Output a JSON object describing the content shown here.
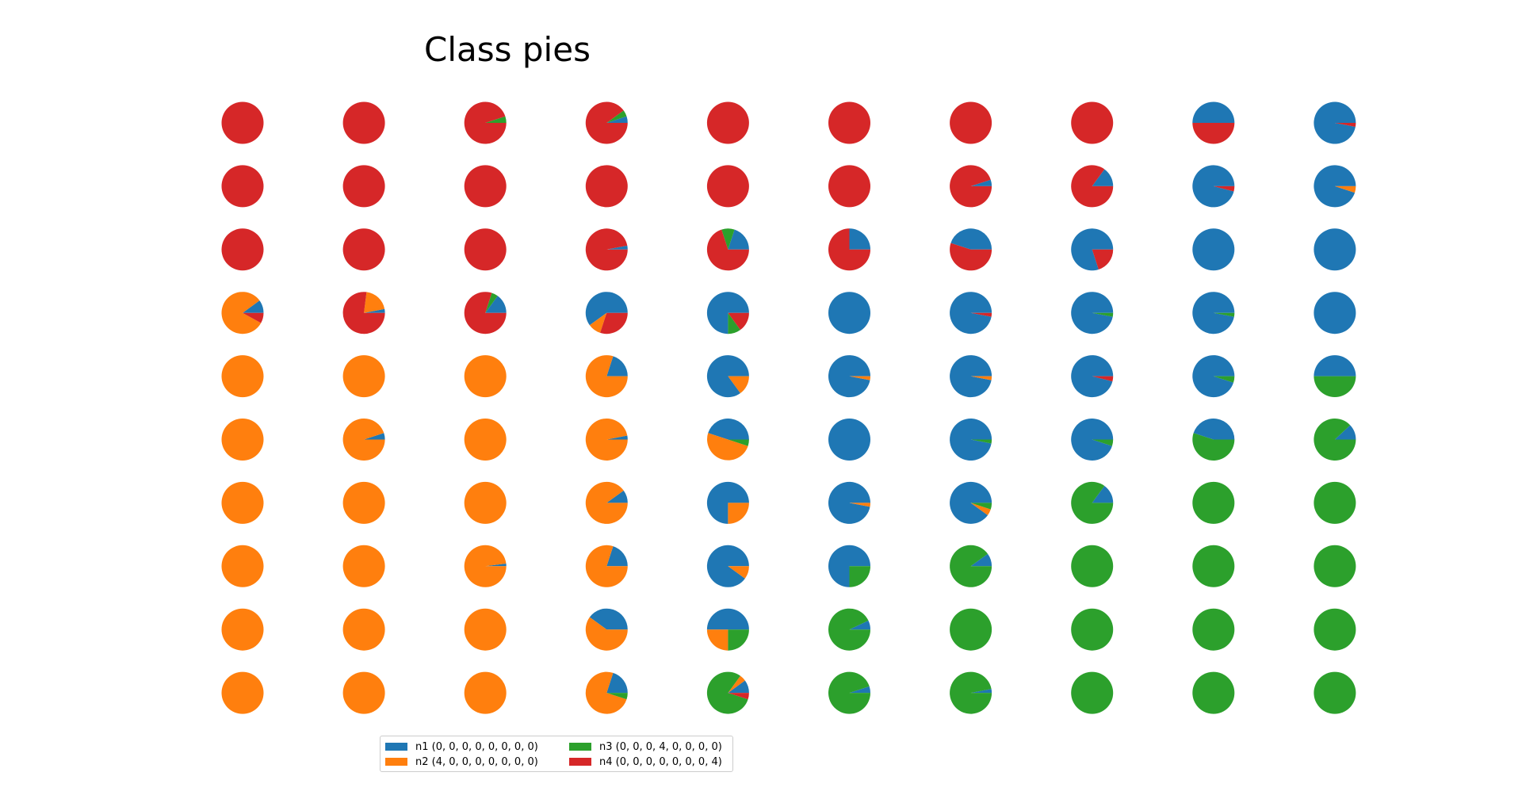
{
  "chart_data": {
    "type": "pie",
    "title": "Class pies",
    "grid_rows": 10,
    "grid_cols": 10,
    "class_order": [
      "n1",
      "n2",
      "n3",
      "n4"
    ],
    "colors": {
      "n1": "#1f77b4",
      "n2": "#ff7f0e",
      "n3": "#2ca02c",
      "n4": "#d62728"
    },
    "legend": {
      "placement": "bottom-left",
      "entries": [
        {
          "key": "n1",
          "label": "n1 (0, 0, 0, 0, 0, 0, 0, 0)",
          "color": "#1f77b4"
        },
        {
          "key": "n2",
          "label": "n2 (4, 0, 0, 0, 0, 0, 0, 0)",
          "color": "#ff7f0e"
        },
        {
          "key": "n3",
          "label": "n3 (0, 0, 0, 4, 0, 0, 0, 0)",
          "color": "#2ca02c"
        },
        {
          "key": "n4",
          "label": "n4 (0, 0, 0, 0, 0, 0, 0, 4)",
          "color": "#d62728"
        }
      ]
    },
    "pies": [
      [
        [
          0,
          0,
          0,
          1
        ],
        [
          0,
          0,
          0,
          1
        ],
        [
          0,
          0,
          0.05,
          0.95
        ],
        [
          0.05,
          0,
          0.05,
          0.9
        ],
        [
          0,
          0,
          0,
          1
        ],
        [
          0,
          0,
          0,
          1
        ],
        [
          0,
          0,
          0,
          1
        ],
        [
          0,
          0,
          0,
          1
        ],
        [
          0.5,
          0,
          0,
          0.5
        ],
        [
          0.97,
          0,
          0,
          0.03
        ]
      ],
      [
        [
          0,
          0,
          0,
          1
        ],
        [
          0,
          0,
          0,
          1
        ],
        [
          0,
          0,
          0,
          1
        ],
        [
          0,
          0,
          0,
          1
        ],
        [
          0,
          0,
          0,
          1
        ],
        [
          0,
          0,
          0,
          1
        ],
        [
          0.05,
          0,
          0,
          0.95
        ],
        [
          0.15,
          0,
          0,
          0.85
        ],
        [
          0.96,
          0,
          0,
          0.04
        ],
        [
          0.95,
          0.05,
          0,
          0
        ]
      ],
      [
        [
          0,
          0,
          0,
          1
        ],
        [
          0,
          0,
          0,
          1
        ],
        [
          0,
          0,
          0,
          1
        ],
        [
          0.03,
          0,
          0,
          0.97
        ],
        [
          0.2,
          0,
          0.1,
          0.7
        ],
        [
          0.25,
          0,
          0,
          0.75
        ],
        [
          0.45,
          0,
          0,
          0.55
        ],
        [
          0.8,
          0,
          0,
          0.2
        ],
        [
          1,
          0,
          0,
          0
        ],
        [
          1,
          0,
          0,
          0
        ]
      ],
      [
        [
          0.1,
          0.82,
          0,
          0.08
        ],
        [
          0.03,
          0.2,
          0,
          0.77
        ],
        [
          0.15,
          0,
          0.05,
          0.8
        ],
        [
          0.6,
          0.1,
          0,
          0.3
        ],
        [
          0.75,
          0,
          0.1,
          0.15
        ],
        [
          1,
          0,
          0,
          0
        ],
        [
          0.97,
          0,
          0,
          0.03
        ],
        [
          0.97,
          0,
          0.03,
          0
        ],
        [
          0.97,
          0,
          0.03,
          0
        ],
        [
          1,
          0,
          0,
          0
        ]
      ],
      [
        [
          0,
          1,
          0,
          0
        ],
        [
          0,
          1,
          0,
          0
        ],
        [
          0,
          1,
          0,
          0
        ],
        [
          0.2,
          0.8,
          0,
          0
        ],
        [
          0.85,
          0.15,
          0,
          0
        ],
        [
          0.97,
          0.03,
          0,
          0
        ],
        [
          0.97,
          0.03,
          0,
          0
        ],
        [
          0.96,
          0,
          0,
          0.04
        ],
        [
          0.95,
          0,
          0.05,
          0
        ],
        [
          0.5,
          0,
          0.5,
          0
        ]
      ],
      [
        [
          0,
          1,
          0,
          0
        ],
        [
          0.05,
          0.95,
          0,
          0
        ],
        [
          0,
          1,
          0,
          0
        ],
        [
          0.03,
          0.97,
          0,
          0
        ],
        [
          0.45,
          0.5,
          0.05,
          0
        ],
        [
          1,
          0,
          0,
          0
        ],
        [
          0.97,
          0,
          0.03,
          0
        ],
        [
          0.95,
          0,
          0.05,
          0
        ],
        [
          0.45,
          0,
          0.55,
          0
        ],
        [
          0.12,
          0,
          0.88,
          0
        ]
      ],
      [
        [
          0,
          1,
          0,
          0
        ],
        [
          0,
          1,
          0,
          0
        ],
        [
          0,
          1,
          0,
          0
        ],
        [
          0.1,
          0.9,
          0,
          0
        ],
        [
          0.75,
          0.25,
          0,
          0
        ],
        [
          0.97,
          0.03,
          0,
          0
        ],
        [
          0.9,
          0.05,
          0.05,
          0
        ],
        [
          0.15,
          0,
          0.85,
          0
        ],
        [
          0,
          0,
          1,
          0
        ],
        [
          0,
          0,
          1,
          0
        ]
      ],
      [
        [
          0,
          1,
          0,
          0
        ],
        [
          0,
          1,
          0,
          0
        ],
        [
          0.02,
          0.98,
          0,
          0
        ],
        [
          0.2,
          0.8,
          0,
          0
        ],
        [
          0.9,
          0.1,
          0,
          0
        ],
        [
          0.75,
          0,
          0.25,
          0
        ],
        [
          0.1,
          0,
          0.9,
          0
        ],
        [
          0,
          0,
          1,
          0
        ],
        [
          0,
          0,
          1,
          0
        ],
        [
          0,
          0,
          1,
          0
        ]
      ],
      [
        [
          0,
          1,
          0,
          0
        ],
        [
          0,
          1,
          0,
          0
        ],
        [
          0,
          1,
          0,
          0
        ],
        [
          0.4,
          0.6,
          0,
          0
        ],
        [
          0.5,
          0.25,
          0.25,
          0
        ],
        [
          0.07,
          0,
          0.93,
          0
        ],
        [
          0,
          0,
          1,
          0
        ],
        [
          0,
          0,
          1,
          0
        ],
        [
          0,
          0,
          1,
          0
        ],
        [
          0,
          0,
          1,
          0
        ]
      ],
      [
        [
          0,
          1,
          0,
          0
        ],
        [
          0,
          1,
          0,
          0
        ],
        [
          0,
          1,
          0,
          0
        ],
        [
          0.2,
          0.75,
          0.05,
          0
        ],
        [
          0.1,
          0.05,
          0.8,
          0.05
        ],
        [
          0.05,
          0,
          0.95,
          0
        ],
        [
          0.03,
          0,
          0.97,
          0
        ],
        [
          0,
          0,
          1,
          0
        ],
        [
          0,
          0,
          1,
          0
        ],
        [
          0,
          0,
          1,
          0
        ]
      ]
    ]
  }
}
